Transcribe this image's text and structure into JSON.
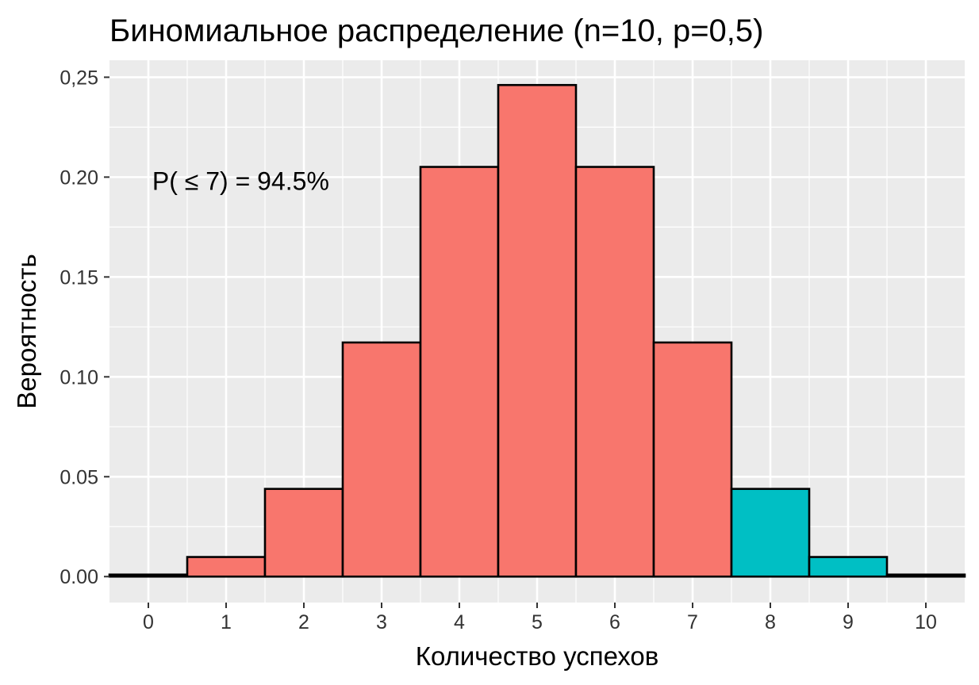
{
  "chart_data": {
    "type": "bar",
    "title": "Биномиальное распределение (n=10, p=0,5)",
    "xlabel": "Количество успехов",
    "ylabel": "Вероятность",
    "x": [
      0,
      1,
      2,
      3,
      4,
      5,
      6,
      7,
      8,
      9,
      10
    ],
    "values": [
      0.001,
      0.0098,
      0.0439,
      0.1172,
      0.2051,
      0.2461,
      0.2051,
      0.1172,
      0.0439,
      0.0098,
      0.001
    ],
    "highlight_threshold": 7,
    "colors": {
      "low": "#F8766D",
      "high": "#00BFC4",
      "panel": "#EBEBEB",
      "grid": "#FFFFFF",
      "outline": "#000000"
    },
    "xlim": [
      -0.5,
      10.5
    ],
    "ylim": [
      -0.013,
      0.2585
    ],
    "xticks": [
      "0",
      "1",
      "2",
      "3",
      "4",
      "5",
      "6",
      "7",
      "8",
      "9",
      "10"
    ],
    "yticks": [
      {
        "value": 0.0,
        "label": "0.00"
      },
      {
        "value": 0.05,
        "label": "0.05"
      },
      {
        "value": 0.1,
        "label": "0.10"
      },
      {
        "value": 0.15,
        "label": "0.15"
      },
      {
        "value": 0.2,
        "label": "0.20"
      },
      {
        "value": 0.25,
        "label": "0,25"
      }
    ],
    "grid": true,
    "legend": "none",
    "annotation": {
      "text": "P( ≤ 7) = 94.5%",
      "x": 0.05,
      "y": 0.198
    }
  }
}
